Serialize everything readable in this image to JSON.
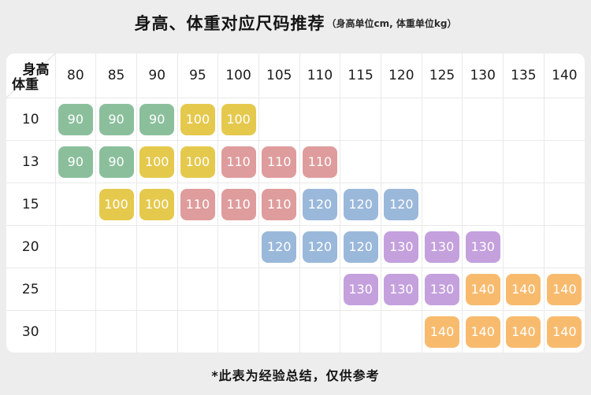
{
  "title": {
    "main": "身高、体重对应尺码推荐",
    "sub": "（身高单位cm, 体重单位kg）"
  },
  "footer": "*此表为经验总结，仅供参考",
  "size_colors": {
    "90": "#8bbf9c",
    "100": "#e5c94d",
    "110": "#df9c9c",
    "120": "#9ab8da",
    "130": "#c4a0dd",
    "140": "#f8bb6e"
  },
  "chart_data": {
    "type": "table",
    "title": "身高、体重对应尺码推荐",
    "subtitle": "（身高单位cm, 体重单位kg）",
    "corner": {
      "top": "身高",
      "bottom": "体重"
    },
    "columns": [
      "80",
      "85",
      "90",
      "95",
      "100",
      "105",
      "110",
      "115",
      "120",
      "125",
      "130",
      "135",
      "140"
    ],
    "rows": [
      {
        "label": "10",
        "cells": [
          "90",
          "90",
          "90",
          "100",
          "100",
          null,
          null,
          null,
          null,
          null,
          null,
          null,
          null
        ]
      },
      {
        "label": "13",
        "cells": [
          "90",
          "90",
          "100",
          "100",
          "110",
          "110",
          "110",
          null,
          null,
          null,
          null,
          null,
          null
        ]
      },
      {
        "label": "15",
        "cells": [
          null,
          "100",
          "100",
          "110",
          "110",
          "110",
          "120",
          "120",
          "120",
          null,
          null,
          null,
          null
        ]
      },
      {
        "label": "20",
        "cells": [
          null,
          null,
          null,
          null,
          null,
          "120",
          "120",
          "120",
          "130",
          "130",
          "130",
          null,
          null
        ]
      },
      {
        "label": "25",
        "cells": [
          null,
          null,
          null,
          null,
          null,
          null,
          null,
          "130",
          "130",
          "130",
          "140",
          "140",
          "140"
        ]
      },
      {
        "label": "30",
        "cells": [
          null,
          null,
          null,
          null,
          null,
          null,
          null,
          null,
          null,
          "140",
          "140",
          "140",
          "140"
        ]
      }
    ],
    "note": "*此表为经验总结，仅供参考",
    "legend": "cell value = recommended size, colored by size"
  }
}
